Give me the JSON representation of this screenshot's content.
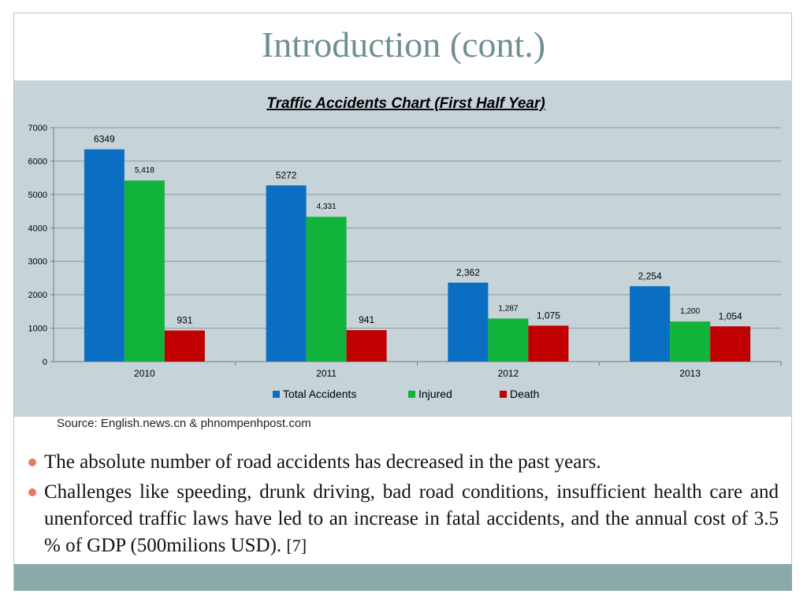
{
  "slide": {
    "title": "Introduction (cont.)",
    "source": "Source: English.news.cn & phnompenhpost.com",
    "bullets": [
      {
        "text": "The absolute number of road accidents has decreased in the past years.",
        "ref": ""
      },
      {
        "text": "Challenges like speeding, drunk driving, bad road conditions, insufficient health care and unenforced traffic laws have led to an increase in fatal accidents, and the annual cost of 3.5 % of GDP (500milions USD).",
        "ref": "[7]"
      }
    ]
  },
  "colors": {
    "title": "#6f8f92",
    "chart_bg": "#c6d3d9",
    "bullet": "#e47a63",
    "footer": "#8aa9a8"
  },
  "chart_data": {
    "type": "bar",
    "title": "Traffic Accidents Chart (First Half Year)",
    "categories": [
      "2010",
      "2011",
      "2012",
      "2013"
    ],
    "series": [
      {
        "name": "Total Accidents",
        "color": "#0a6fc2",
        "values": [
          6349,
          5272,
          2362,
          2254
        ],
        "labels": [
          "6349",
          "5272",
          "2,362",
          "2,254"
        ]
      },
      {
        "name": "Injured",
        "color": "#12b33a",
        "values": [
          5418,
          4331,
          1287,
          1200
        ],
        "labels": [
          "5,418",
          "4,331",
          "1,287",
          "1,200"
        ]
      },
      {
        "name": "Death",
        "color": "#c00000",
        "values": [
          931,
          941,
          1075,
          1054
        ],
        "labels": [
          "931",
          "941",
          "1,075",
          "1,054"
        ]
      }
    ],
    "ylim": [
      0,
      7000
    ],
    "yticks": [
      0,
      1000,
      2000,
      3000,
      4000,
      5000,
      6000,
      7000
    ],
    "grid": true,
    "legend": "bottom"
  }
}
